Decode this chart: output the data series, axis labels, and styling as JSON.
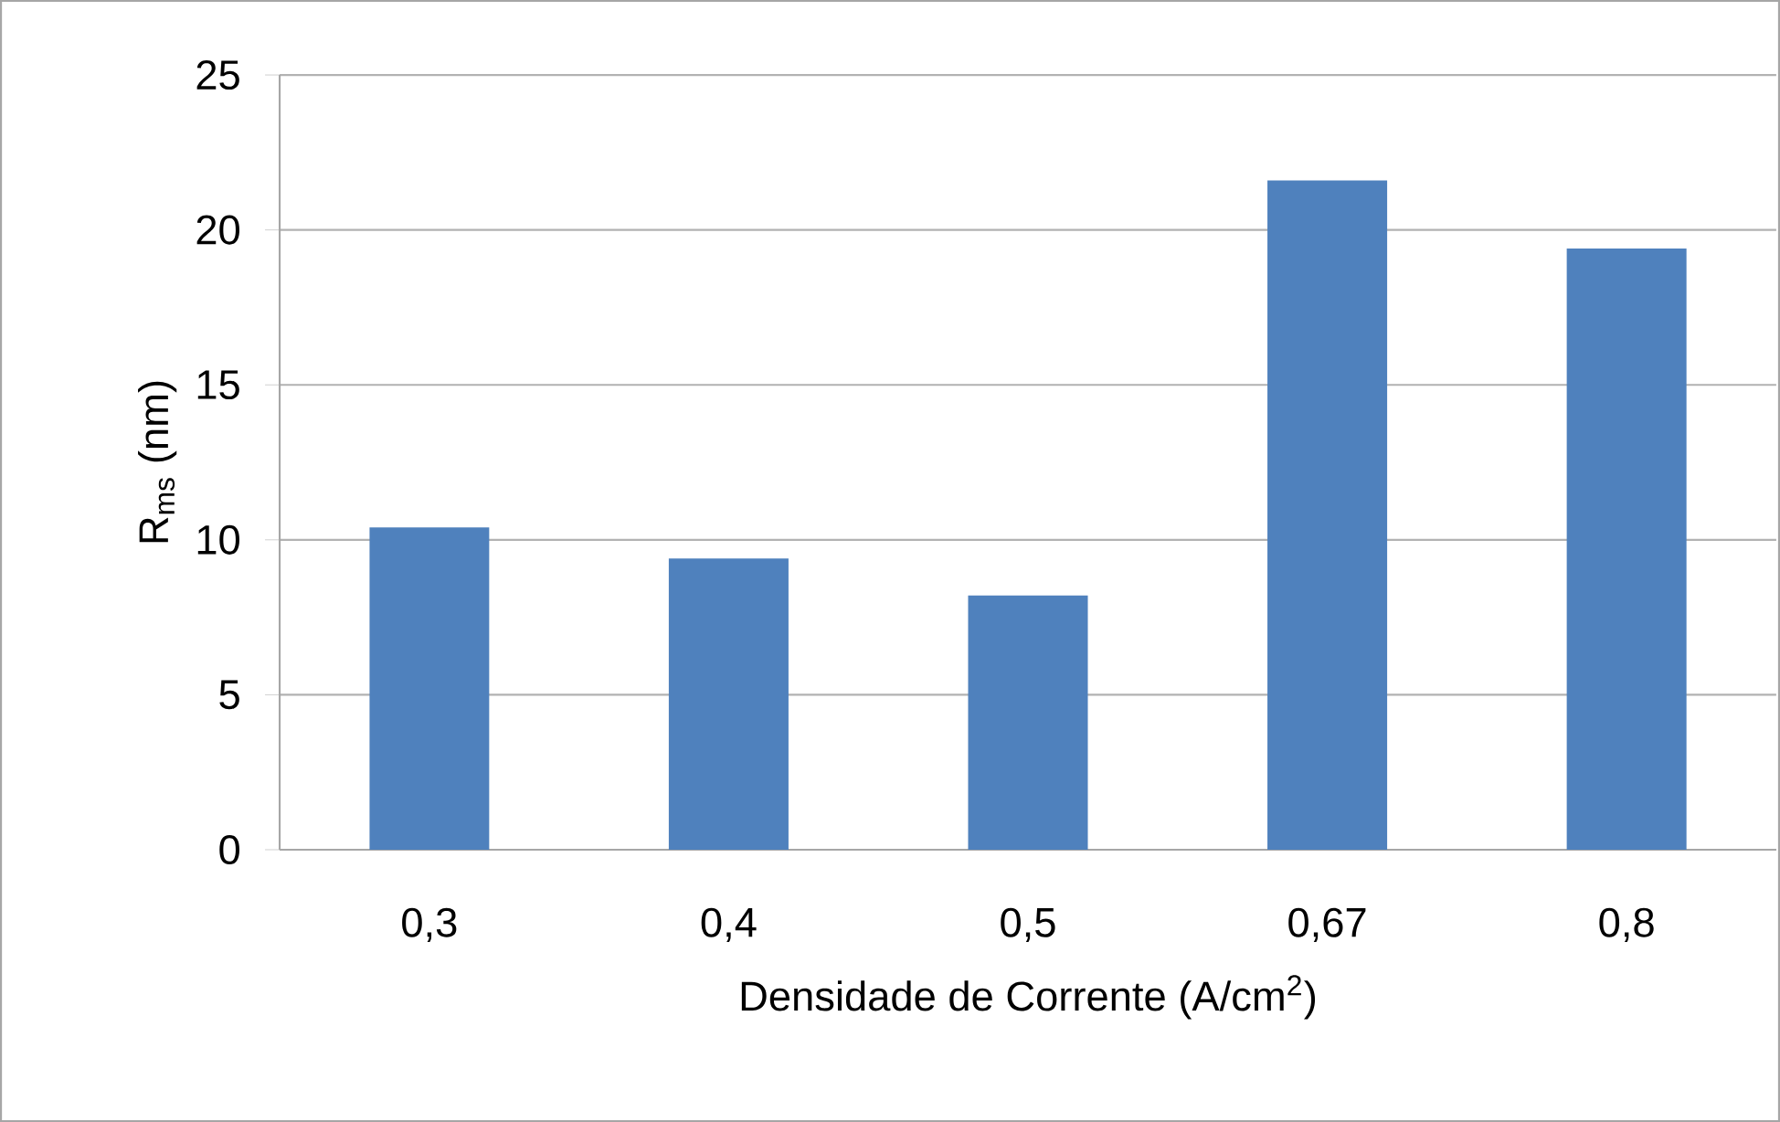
{
  "chart_data": {
    "type": "bar",
    "xlabel": "Densidade de Corrente (A/cm$^{2}$)",
    "ylabel": "R$_{ms}$ (nm)",
    "categories": [
      "0,3",
      "0,4",
      "0,5",
      "0,67",
      "0,8"
    ],
    "values": [
      10.4,
      9.4,
      8.2,
      21.6,
      19.4
    ],
    "color": "#4f81bd",
    "ylim": [
      0,
      25
    ],
    "yticks": [
      0,
      5,
      10,
      15,
      20,
      25
    ],
    "grid": "y"
  }
}
